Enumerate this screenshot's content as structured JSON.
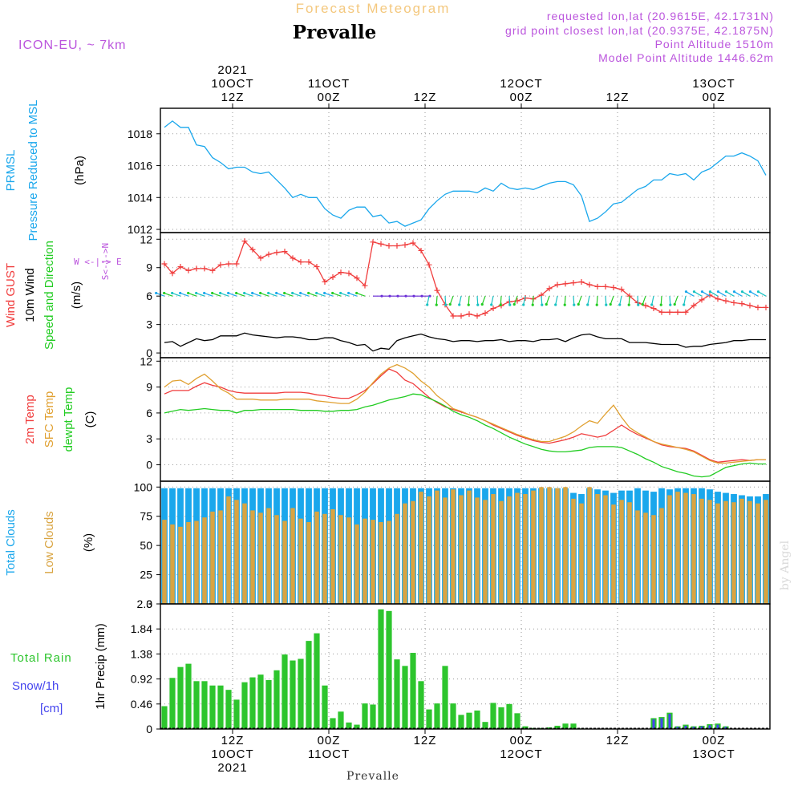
{
  "header": {
    "product": "Forecast Meteogram",
    "station": "Prevalle",
    "model": "ICON-EU, ~ 7km",
    "requested": "requested lon,lat (20.9615E, 42.1731N)",
    "gridpoint": "grid point closest lon,lat (20.9375E, 42.1875N)",
    "point_alt": "Point Altitude 1510m",
    "model_alt": "Model Point Altitude 1446.62m",
    "credit": "by Angel",
    "footer_station": "Prevalle"
  },
  "colors": {
    "pressure": "#1aa7ec",
    "gust": "#f03c3c",
    "wind": "#000000",
    "temp2m": "#f03c3c",
    "sfc": "#e0a030",
    "dewpt": "#22cc22",
    "total_cloud": "#1aa7ec",
    "low_cloud": "#d9a441",
    "rain": "#2dc52d",
    "snow": "#4444ee",
    "purple": "#bb55dd",
    "grid": "#888888"
  },
  "time_axis": {
    "top": [
      {
        "t": 9,
        "lines": [
          "2021",
          "10OCT",
          "12Z"
        ]
      },
      {
        "t": 21,
        "lines": [
          "11OCT",
          "00Z"
        ]
      },
      {
        "t": 33,
        "lines": [
          "12Z"
        ]
      },
      {
        "t": 45,
        "lines": [
          "12OCT",
          "00Z"
        ]
      },
      {
        "t": 57,
        "lines": [
          "12Z"
        ]
      },
      {
        "t": 69,
        "lines": [
          "13OCT",
          "00Z"
        ]
      }
    ],
    "bottom": [
      {
        "t": 9,
        "lines": [
          "12Z",
          "10OCT",
          "2021"
        ]
      },
      {
        "t": 21,
        "lines": [
          "00Z",
          "11OCT"
        ]
      },
      {
        "t": 33,
        "lines": [
          "12Z"
        ]
      },
      {
        "t": 45,
        "lines": [
          "00Z",
          "12OCT"
        ]
      },
      {
        "t": 57,
        "lines": [
          "12Z"
        ]
      },
      {
        "t": 69,
        "lines": [
          "00Z",
          "13OCT"
        ]
      }
    ]
  },
  "chart_data": [
    {
      "type": "line",
      "id": "pressure",
      "title": "PRMSL Pressure Reduced to MSL",
      "ylabel": "(hPa)",
      "label_lines": [
        {
          "text": "PRMSL",
          "color": "#1aa7ec"
        },
        {
          "text": "Pressure Reduced to MSL",
          "color": "#1aa7ec"
        }
      ],
      "unit_label": "(hPa)",
      "ylim": [
        1011.8,
        1019.6
      ],
      "ticks": [
        1012,
        1014,
        1016,
        1018
      ],
      "series": [
        {
          "name": "PRMSL",
          "color": "#1aa7ec",
          "values": [
            1018.4,
            1018.8,
            1018.4,
            1018.4,
            1017.3,
            1017.2,
            1016.5,
            1016.2,
            1015.8,
            1015.9,
            1015.9,
            1015.6,
            1015.5,
            1015.6,
            1015.1,
            1014.6,
            1014.0,
            1014.2,
            1014.0,
            1014.0,
            1013.3,
            1012.9,
            1012.7,
            1013.2,
            1013.4,
            1013.4,
            1012.8,
            1012.9,
            1012.4,
            1012.5,
            1012.2,
            1012.4,
            1012.6,
            1013.3,
            1013.8,
            1014.2,
            1014.4,
            1014.4,
            1014.4,
            1014.3,
            1014.6,
            1014.4,
            1014.9,
            1014.6,
            1014.5,
            1014.6,
            1014.5,
            1014.7,
            1014.9,
            1015.0,
            1015.0,
            1014.8,
            1014.1,
            1012.5,
            1012.7,
            1013.1,
            1013.6,
            1013.7,
            1014.1,
            1014.5,
            1014.7,
            1015.1,
            1015.1,
            1015.5,
            1015.4,
            1015.5,
            1015.1,
            1015.6,
            1015.8,
            1016.2,
            1016.6,
            1016.6,
            1016.8,
            1016.6,
            1016.3,
            1015.4
          ]
        }
      ]
    },
    {
      "type": "line",
      "id": "wind",
      "title": "Wind GUST / 10m Wind Speed and Direction",
      "ylabel": "(m/s)",
      "label_lines": [
        {
          "text": "Wind GUST",
          "color": "#f03c3c"
        },
        {
          "text": "10m Wind",
          "color": "#000000"
        },
        {
          "text": "Speed and Direction",
          "color": "#22cc22"
        }
      ],
      "unit_label": "(m/s)",
      "compass": {
        "w": "W",
        "e": "E",
        "n": "N",
        "s": "S"
      },
      "ylim": [
        -0.5,
        12.7
      ],
      "ticks": [
        0,
        3,
        6,
        9,
        12
      ],
      "series": [
        {
          "name": "Wind GUST",
          "color": "#f03c3c",
          "marker": "+",
          "values": [
            9.4,
            8.4,
            9.1,
            8.7,
            8.9,
            8.9,
            8.7,
            9.3,
            9.4,
            9.4,
            11.8,
            10.9,
            10.0,
            10.4,
            10.6,
            10.7,
            10.0,
            9.6,
            9.6,
            9.1,
            7.5,
            8.0,
            8.5,
            8.4,
            7.9,
            7.1,
            11.7,
            11.5,
            11.3,
            11.3,
            11.4,
            11.6,
            10.8,
            9.3,
            6.6,
            5.1,
            3.9,
            3.9,
            4.1,
            3.9,
            4.2,
            4.7,
            5.0,
            5.4,
            5.5,
            5.8,
            5.7,
            6.1,
            6.8,
            7.2,
            7.3,
            7.4,
            7.5,
            7.2,
            7.0,
            7.0,
            6.9,
            6.7,
            6.0,
            5.3,
            5.0,
            4.7,
            4.3,
            4.3,
            4.3,
            4.3,
            5.0,
            5.6,
            6.1,
            5.7,
            5.5,
            5.3,
            5.2,
            5.0,
            4.8,
            4.8
          ]
        },
        {
          "name": "10m Wind",
          "color": "#000000",
          "values": [
            1.1,
            1.2,
            0.7,
            1.1,
            1.5,
            1.3,
            1.4,
            1.8,
            1.8,
            1.8,
            2.1,
            1.9,
            1.8,
            1.7,
            1.6,
            1.7,
            1.7,
            1.6,
            1.4,
            1.4,
            1.6,
            1.6,
            1.3,
            1.1,
            0.8,
            0.9,
            0.2,
            0.5,
            0.4,
            1.3,
            1.6,
            1.8,
            2.0,
            1.7,
            1.5,
            1.4,
            1.2,
            1.3,
            1.3,
            1.2,
            1.3,
            1.3,
            1.4,
            1.2,
            1.3,
            1.3,
            1.2,
            1.4,
            1.4,
            1.5,
            1.2,
            1.6,
            1.9,
            2.0,
            1.7,
            1.5,
            1.5,
            1.5,
            1.1,
            1.1,
            1.1,
            1.0,
            0.9,
            0.9,
            0.9,
            0.6,
            0.7,
            0.7,
            0.9,
            1.0,
            1.1,
            1.3,
            1.3,
            1.4,
            1.4,
            1.4
          ]
        }
      ]
    },
    {
      "type": "line",
      "id": "temperature",
      "title": "2m Temp / SFC Temp / dewpt Temp",
      "ylabel": "(C)",
      "label_lines": [
        {
          "text": "2m Temp",
          "color": "#f03c3c"
        },
        {
          "text": "SFC Temp",
          "color": "#e0a030"
        },
        {
          "text": "dewpt Temp",
          "color": "#22cc22"
        }
      ],
      "unit_label": "(C)",
      "ylim": [
        -1.9,
        12.4
      ],
      "ticks": [
        0,
        3,
        6,
        9,
        12
      ],
      "series": [
        {
          "name": "2m Temp",
          "color": "#f03c3c",
          "values": [
            8.2,
            8.6,
            8.6,
            8.6,
            9.1,
            9.5,
            9.2,
            9.0,
            8.6,
            8.4,
            8.3,
            8.3,
            8.3,
            8.3,
            8.3,
            8.4,
            8.4,
            8.4,
            8.3,
            8.1,
            8.0,
            7.8,
            7.7,
            7.7,
            8.1,
            8.6,
            9.4,
            10.3,
            11.1,
            10.7,
            9.8,
            9.4,
            8.6,
            7.8,
            7.2,
            6.7,
            6.4,
            6.1,
            5.8,
            5.5,
            5.1,
            4.6,
            4.2,
            3.8,
            3.4,
            3.1,
            2.8,
            2.6,
            2.5,
            2.7,
            2.9,
            3.2,
            3.6,
            3.4,
            3.2,
            3.4,
            4.0,
            4.6,
            4.0,
            3.5,
            3.1,
            2.7,
            2.3,
            2.1,
            2.0,
            1.9,
            1.6,
            1.1,
            0.6,
            0.3,
            0.4,
            0.5,
            0.6,
            0.5,
            0.6,
            0.6
          ]
        },
        {
          "name": "SFC Temp",
          "color": "#e0a030",
          "values": [
            9.0,
            9.7,
            9.8,
            9.3,
            10.0,
            10.5,
            9.7,
            8.8,
            8.3,
            7.6,
            7.6,
            7.6,
            7.5,
            7.5,
            7.5,
            7.6,
            7.6,
            7.6,
            7.6,
            7.4,
            7.3,
            7.2,
            7.1,
            7.1,
            7.6,
            8.4,
            9.5,
            10.5,
            11.2,
            11.6,
            11.2,
            10.6,
            9.7,
            9.0,
            8.0,
            7.3,
            6.5,
            6.2,
            5.8,
            5.5,
            5.1,
            4.7,
            4.3,
            3.9,
            3.5,
            3.2,
            2.9,
            2.7,
            2.7,
            3.0,
            3.3,
            3.8,
            4.5,
            5.1,
            4.8,
            5.9,
            6.9,
            5.5,
            4.3,
            3.7,
            3.2,
            2.7,
            2.4,
            2.2,
            2.0,
            1.8,
            1.5,
            1.0,
            0.5,
            0.2,
            0.2,
            0.3,
            0.4,
            0.5,
            0.6,
            0.6
          ]
        },
        {
          "name": "dewpt Temp",
          "color": "#22cc22",
          "values": [
            6.0,
            6.2,
            6.4,
            6.3,
            6.4,
            6.5,
            6.4,
            6.3,
            6.3,
            6.0,
            6.3,
            6.3,
            6.4,
            6.4,
            6.4,
            6.4,
            6.4,
            6.3,
            6.3,
            6.3,
            6.2,
            6.2,
            6.3,
            6.3,
            6.4,
            6.7,
            6.9,
            7.2,
            7.5,
            7.7,
            7.9,
            8.2,
            8.1,
            7.7,
            7.3,
            6.8,
            6.2,
            5.8,
            5.5,
            5.1,
            4.6,
            4.2,
            3.7,
            3.2,
            2.8,
            2.4,
            2.1,
            1.8,
            1.6,
            1.5,
            1.5,
            1.6,
            1.7,
            2.0,
            2.1,
            2.1,
            2.1,
            2.0,
            1.6,
            1.2,
            0.7,
            0.3,
            -0.2,
            -0.5,
            -0.8,
            -1.0,
            -1.3,
            -1.4,
            -1.3,
            -0.8,
            -0.3,
            -0.1,
            0.1,
            0.2,
            0.1,
            0.1
          ]
        }
      ]
    },
    {
      "type": "bar",
      "id": "clouds",
      "title": "Total Clouds / Low Clouds",
      "ylabel": "(%)",
      "label_lines": [
        {
          "text": "Total Clouds",
          "color": "#1aa7ec"
        },
        {
          "text": "Low Clouds",
          "color": "#d9a441"
        }
      ],
      "unit_label": "(%)",
      "ylim": [
        0,
        105
      ],
      "ticks": [
        0,
        25,
        50,
        75,
        100
      ],
      "series": [
        {
          "name": "Total Clouds",
          "color": "#1aa7ec",
          "values": [
            99,
            99,
            99,
            99,
            99,
            99,
            99,
            99,
            99,
            99,
            99,
            99,
            99,
            99,
            99,
            99,
            99,
            99,
            99,
            99,
            99,
            99,
            99,
            99,
            99,
            99,
            99,
            99,
            99,
            99,
            99,
            99,
            99,
            99,
            99,
            99,
            99,
            99,
            99,
            99,
            99,
            99,
            99,
            99,
            99,
            99,
            99,
            99,
            99,
            99,
            99,
            95,
            94,
            99,
            98,
            97,
            95,
            97,
            97,
            99,
            97,
            96,
            99,
            98,
            99,
            99,
            99,
            99,
            98,
            96,
            95,
            94,
            93,
            92,
            92,
            94
          ]
        },
        {
          "name": "Low Clouds",
          "color": "#d9a441",
          "values": [
            72,
            68,
            66,
            70,
            71,
            74,
            79,
            80,
            92,
            89,
            86,
            80,
            78,
            82,
            76,
            71,
            82,
            73,
            70,
            79,
            77,
            81,
            76,
            74,
            68,
            73,
            72,
            70,
            71,
            77,
            86,
            88,
            96,
            92,
            97,
            91,
            98,
            93,
            97,
            91,
            89,
            94,
            88,
            92,
            95,
            94,
            97,
            100,
            100,
            99,
            100,
            90,
            86,
            100,
            94,
            93,
            85,
            89,
            87,
            80,
            78,
            76,
            82,
            93,
            96,
            95,
            94,
            90,
            89,
            86,
            88,
            87,
            90,
            88,
            86,
            89
          ]
        }
      ]
    },
    {
      "type": "bar",
      "id": "precip",
      "title": "Total Rain / Snow/1h [cm]",
      "ylabel": "1hr Precip (mm)",
      "label_lines": [
        {
          "text": "Total  Rain",
          "color": "#2dc52d"
        },
        {
          "text": "Snow/1h",
          "color": "#4444ee"
        },
        {
          "text": "[cm]",
          "color": "#4444ee"
        }
      ],
      "unit_label": "1hr Precip (mm)",
      "ylim": [
        0,
        2.3
      ],
      "ticks": [
        0,
        0.46,
        0.92,
        1.38,
        1.84,
        2.3
      ],
      "series": [
        {
          "name": "Total Rain",
          "color": "#2dc52d",
          "values": [
            0.42,
            0.94,
            1.14,
            1.2,
            0.88,
            0.88,
            0.8,
            0.8,
            0.72,
            0.54,
            0.86,
            0.95,
            1.0,
            0.9,
            1.08,
            1.37,
            1.26,
            1.29,
            1.62,
            1.76,
            0.8,
            0.2,
            0.32,
            0.12,
            0.08,
            0.47,
            0.45,
            2.2,
            2.17,
            1.28,
            1.16,
            1.4,
            0.88,
            0.36,
            0.47,
            1.16,
            0.47,
            0.26,
            0.3,
            0.34,
            0.13,
            0.48,
            0.4,
            0.46,
            0.29,
            0.05,
            0.02,
            0.02,
            0.03,
            0.06,
            0.1,
            0.1,
            0.01,
            0,
            0,
            0,
            0,
            0,
            0,
            0,
            0,
            0.2,
            0.22,
            0.3,
            0.05,
            0.08,
            0.05,
            0.06,
            0.09,
            0.1,
            0.05,
            0,
            0,
            0,
            0,
            0
          ]
        },
        {
          "name": "Snow/1h",
          "color": "#4444ee",
          "values": [
            0,
            0,
            0,
            0,
            0,
            0,
            0,
            0,
            0,
            0,
            0,
            0,
            0,
            0,
            0,
            0,
            0,
            0,
            0,
            0,
            0,
            0,
            0,
            0,
            0,
            0,
            0,
            0,
            0,
            0,
            0,
            0,
            0,
            0,
            0,
            0,
            0,
            0,
            0,
            0,
            0,
            0,
            0,
            0,
            0,
            0,
            0,
            0,
            0,
            0,
            0,
            0,
            0,
            0,
            0,
            0,
            0,
            0,
            0,
            0,
            0,
            0.18,
            0.2,
            0.28,
            0.04,
            0.06,
            0.04,
            0.05,
            0.07,
            0.08,
            0.04,
            0,
            0,
            0,
            0,
            0
          ]
        }
      ]
    }
  ]
}
